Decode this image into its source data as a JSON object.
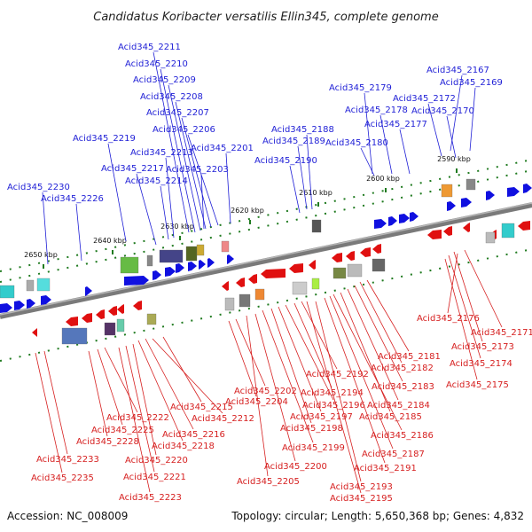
{
  "title": "Candidatus Koribacter versatilis Ellin345, complete genome",
  "footer": {
    "accession": "Accession: NC_008009",
    "topology": "Topology: circular; Length: 5,650,368 bp; Genes: 4,832"
  },
  "colors": {
    "forward": "#1010e0",
    "reverse": "#e01010",
    "label_top": "#1f1fd6",
    "label_bottom": "#d61f1f",
    "axis": "#808080",
    "tick": "#1f7a1f"
  },
  "ticks": [
    {
      "label": "2590 kbp"
    },
    {
      "label": "2600 kbp"
    },
    {
      "label": "2610 kbp"
    },
    {
      "label": "2620 kbp"
    },
    {
      "label": "2630 kbp"
    },
    {
      "label": "2640 kbp"
    },
    {
      "label": "2650 kbp"
    }
  ],
  "top_labels": [
    "Acid345_2211",
    "Acid345_2210",
    "Acid345_2209",
    "Acid345_2208",
    "Acid345_2207",
    "Acid345_2206",
    "Acid345_2219",
    "Acid345_2213",
    "Acid345_2201",
    "Acid345_2217",
    "Acid345_2203",
    "Acid345_2214",
    "Acid345_2230",
    "Acid345_2226",
    "Acid345_2188",
    "Acid345_2189",
    "Acid345_2190",
    "Acid345_2179",
    "Acid345_2178",
    "Acid345_2180",
    "Acid345_2177",
    "Acid345_2167",
    "Acid345_2169",
    "Acid345_2172",
    "Acid345_2170"
  ],
  "bottom_labels": [
    "Acid345_2176",
    "Acid345_2171",
    "Acid345_2173",
    "Acid345_2174",
    "Acid345_2175",
    "Acid345_2181",
    "Acid345_2182",
    "Acid345_2183",
    "Acid345_2184",
    "Acid345_2185",
    "Acid345_2186",
    "Acid345_2187",
    "Acid345_2191",
    "Acid345_2193",
    "Acid345_2195",
    "Acid345_2192",
    "Acid345_2194",
    "Acid345_2196",
    "Acid345_2197",
    "Acid345_2198",
    "Acid345_2199",
    "Acid345_2200",
    "Acid345_2205",
    "Acid345_2202",
    "Acid345_2204",
    "Acid345_2215",
    "Acid345_2212",
    "Acid345_2216",
    "Acid345_2218",
    "Acid345_2220",
    "Acid345_2221",
    "Acid345_2223",
    "Acid345_2222",
    "Acid345_2225",
    "Acid345_2228",
    "Acid345_2233",
    "Acid345_2235"
  ]
}
